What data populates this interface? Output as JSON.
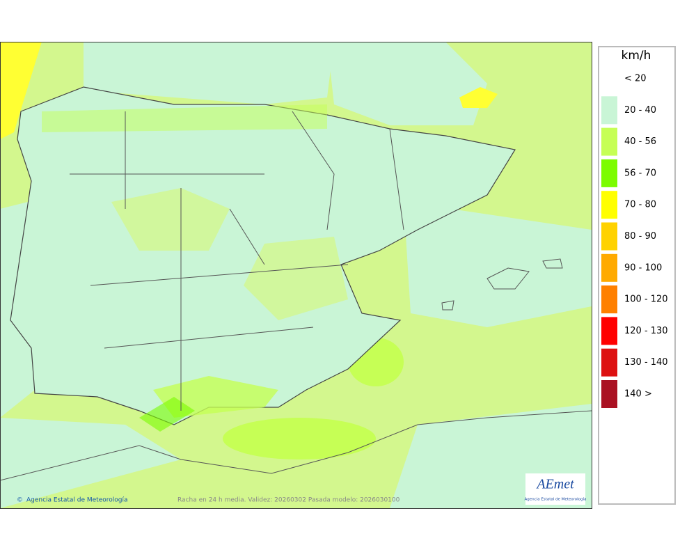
{
  "map": {
    "credit": "Agencia Estatal de Meteorología",
    "caption": "Racha en 24 h media. Validez: 20260302 Pasada modelo: 2026030100",
    "logo": {
      "name": "AEmet",
      "subtitle": "Agencia Estatal de Meteorología"
    }
  },
  "legend": {
    "title": "km/h",
    "items": [
      {
        "label": "< 20"
      },
      {
        "label": "20 - 40",
        "color": "#c9f5d6"
      },
      {
        "label": "40 - 56",
        "color": "#c6ff55"
      },
      {
        "label": "56 - 70",
        "color": "#7cfc00"
      },
      {
        "label": "70 - 80",
        "color": "#ffff00"
      },
      {
        "label": "80 - 90",
        "color": "#ffd200"
      },
      {
        "label": "90 - 100",
        "color": "#ffaa00"
      },
      {
        "label": "100 - 120",
        "color": "#ff8000"
      },
      {
        "label": "120 - 130",
        "color": "#ff0000"
      },
      {
        "label": "130 - 140",
        "color": "#dd1111"
      },
      {
        "label": "140 >",
        "color": "#aa1122"
      }
    ]
  }
}
